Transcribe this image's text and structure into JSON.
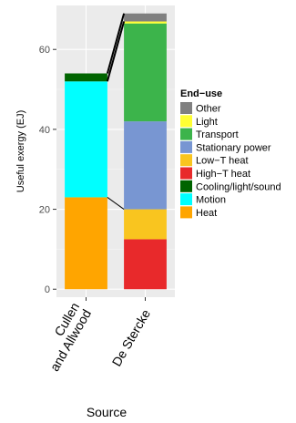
{
  "chart_data": {
    "type": "bar",
    "stacked": true,
    "xlabel": "Source",
    "ylabel": "Useful exergy (EJ)",
    "ylim": [
      -2,
      71
    ],
    "yticks": [
      0,
      20,
      40,
      60
    ],
    "grid": true,
    "legend_placement": "right",
    "legend_title": "End−use",
    "legend_entries": [
      {
        "name": "Other",
        "color": "#808080"
      },
      {
        "name": "Light",
        "color": "#ffff33"
      },
      {
        "name": "Transport",
        "color": "#3cb44b"
      },
      {
        "name": "Stationary power",
        "color": "#7896d2"
      },
      {
        "name": "Low−T heat",
        "color": "#f9c51f"
      },
      {
        "name": "High−T heat",
        "color": "#e8292b"
      },
      {
        "name": "Cooling/light/sound",
        "color": "#006400"
      },
      {
        "name": "Motion",
        "color": "#00ffff"
      },
      {
        "name": "Heat",
        "color": "#ffa500"
      }
    ],
    "categories": [
      {
        "lines": [
          "Cullen",
          "and Allwood"
        ]
      },
      {
        "lines": [
          "De Stercke"
        ]
      }
    ],
    "stacks": [
      [
        {
          "name": "Heat",
          "value": 23
        },
        {
          "name": "Motion",
          "value": 29
        },
        {
          "name": "Cooling/light/sound",
          "value": 2
        }
      ],
      [
        {
          "name": "High−T heat",
          "value": 12.5
        },
        {
          "name": "Low−T heat",
          "value": 7.5
        },
        {
          "name": "Stationary power",
          "value": 22
        },
        {
          "name": "Transport",
          "value": 24.5
        },
        {
          "name": "Light",
          "value": 0.5
        },
        {
          "name": "Other",
          "value": 2
        }
      ]
    ],
    "connectors": [
      {
        "from_category": 0,
        "to_category": 1,
        "y_from": 23,
        "y_to": 20,
        "style": "thin"
      },
      {
        "from_category": 0,
        "to_category": 1,
        "y_from": 52,
        "y_to": 67,
        "style": "thick"
      },
      {
        "from_category": 0,
        "to_category": 1,
        "y_from": 54,
        "y_to": 69,
        "style": "thick"
      }
    ]
  }
}
